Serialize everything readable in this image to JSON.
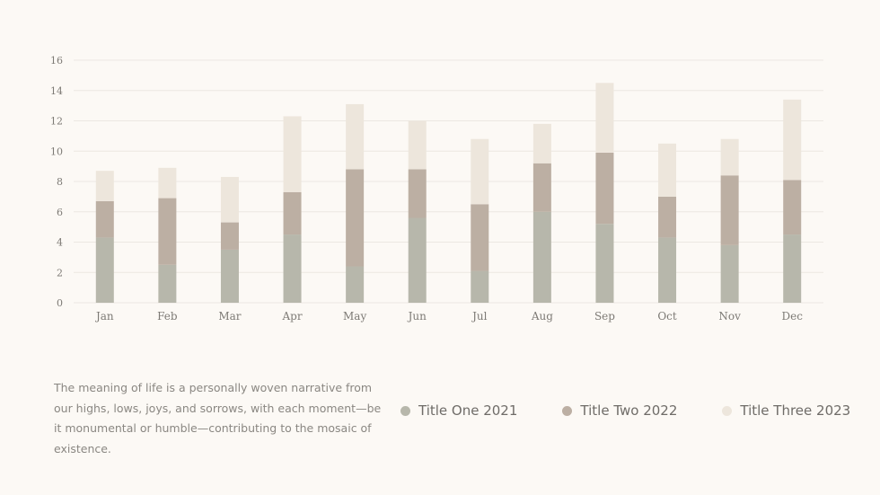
{
  "caption": "The meaning of life is a personally woven narrative from our highs, lows, joys, and sorrows, with each moment—be it monumental or humble—contributing to the mosaic of existence.",
  "chart_data": {
    "type": "bar",
    "stacked": true,
    "title": "",
    "xlabel": "",
    "ylabel": "",
    "ylim": [
      0,
      16
    ],
    "yticks": [
      0,
      2,
      4,
      6,
      8,
      10,
      12,
      14,
      16
    ],
    "grid": true,
    "legend_position": "bottom-right",
    "categories": [
      "Jan",
      "Feb",
      "Mar",
      "Apr",
      "May",
      "Jun",
      "Jul",
      "Aug",
      "Sep",
      "Oct",
      "Nov",
      "Dec"
    ],
    "series": [
      {
        "name": "Title One 2021",
        "color": "#b7b7ab",
        "values": [
          4.3,
          2.5,
          3.5,
          4.5,
          2.4,
          5.6,
          2.1,
          6.0,
          5.2,
          4.3,
          3.8,
          4.5
        ]
      },
      {
        "name": "Title Two 2022",
        "color": "#bcafa3",
        "values": [
          2.4,
          4.4,
          1.8,
          2.8,
          6.4,
          3.2,
          4.4,
          3.2,
          4.7,
          2.7,
          4.6,
          3.6
        ]
      },
      {
        "name": "Title Three 2023",
        "color": "#ede6dc",
        "values": [
          2.0,
          2.0,
          3.0,
          5.0,
          4.3,
          3.2,
          4.3,
          2.6,
          4.6,
          3.5,
          2.4,
          5.3
        ]
      }
    ]
  }
}
